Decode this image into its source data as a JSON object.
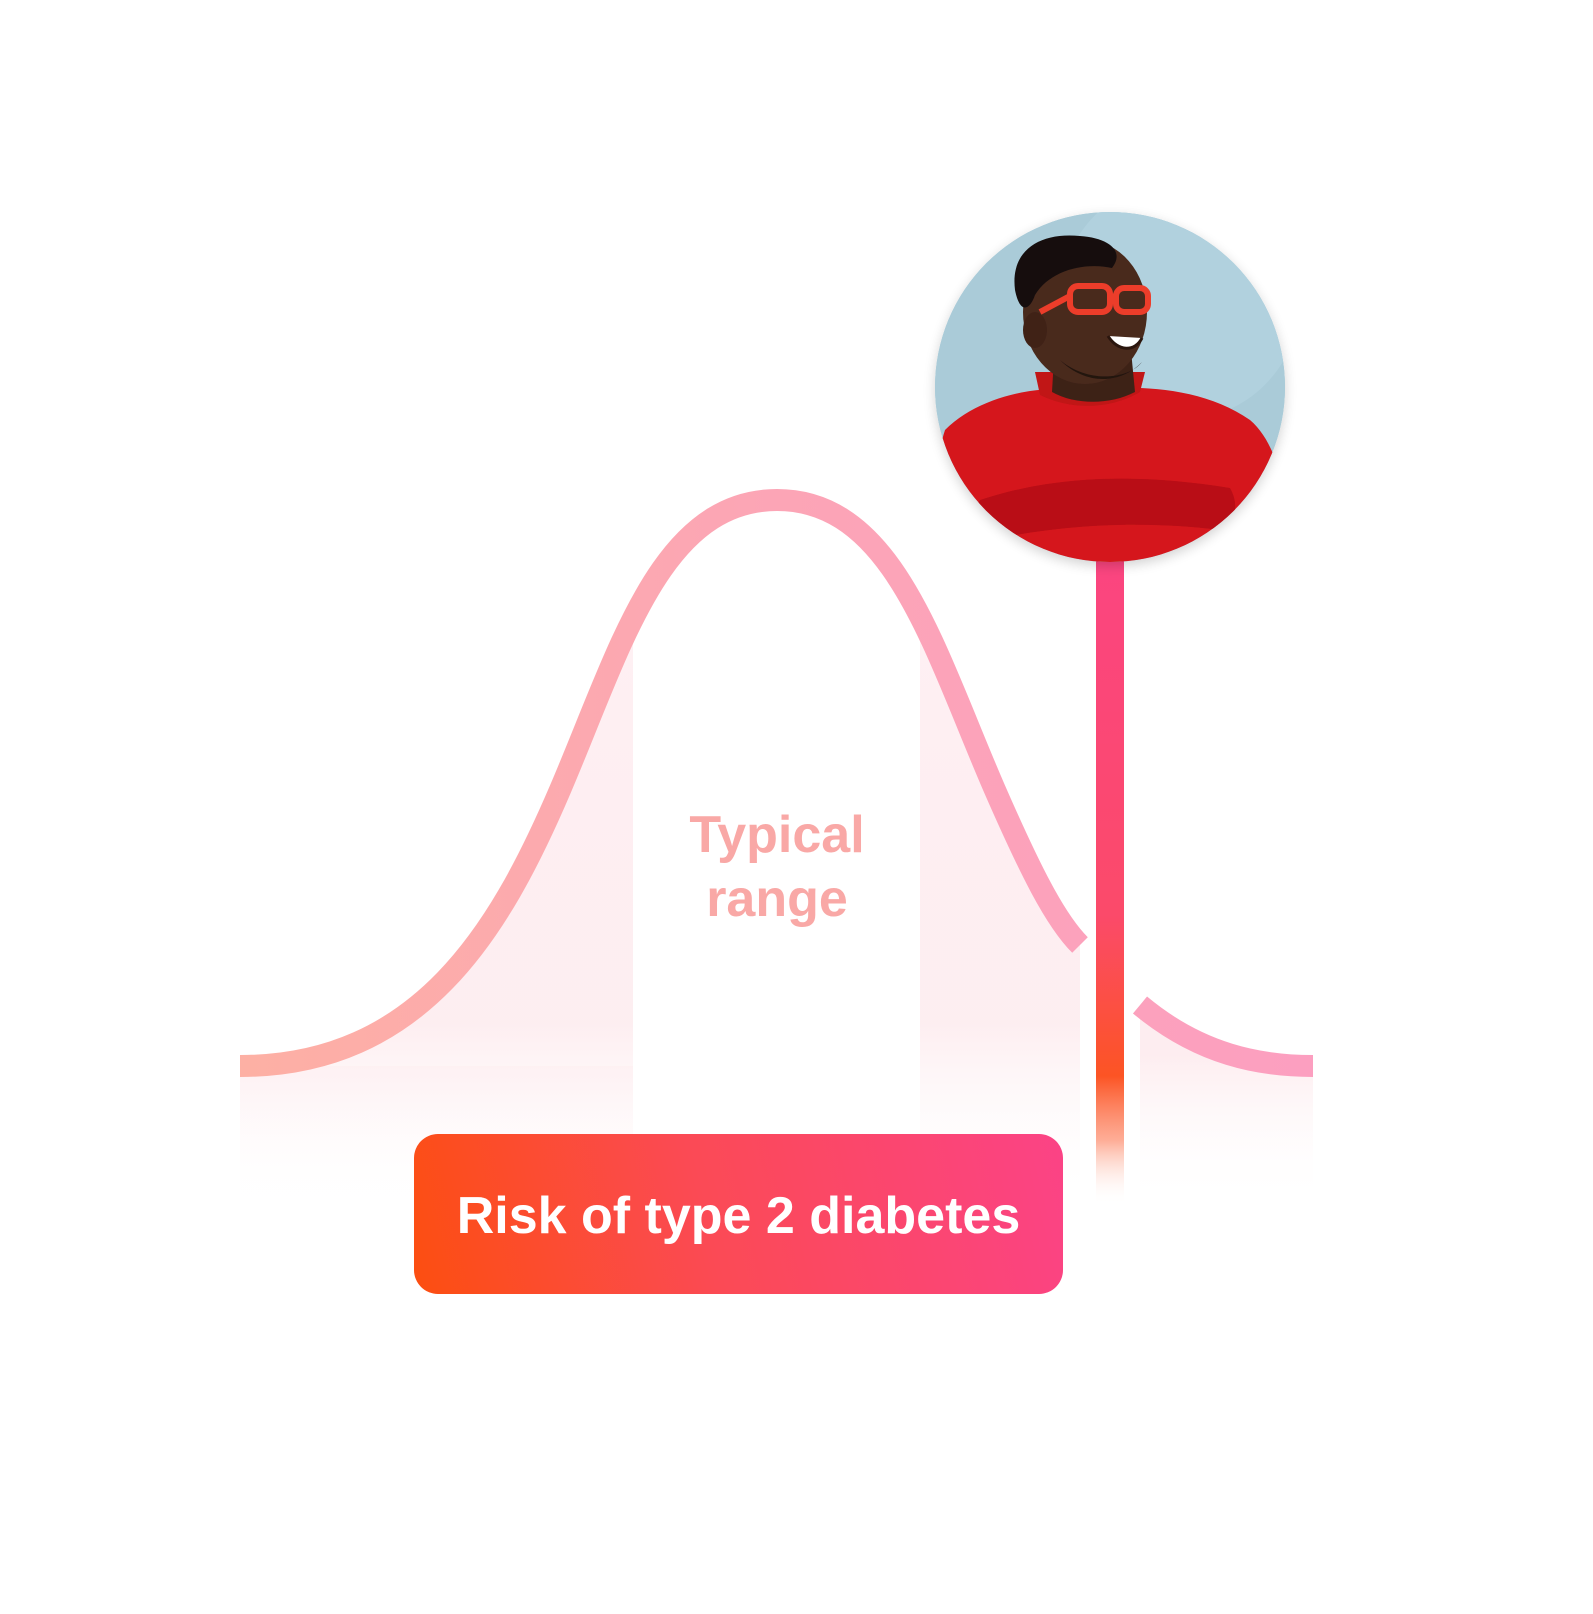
{
  "typical_range": {
    "line1": "Typical",
    "line2": "range"
  },
  "badge": {
    "label": "Risk of type 2 diabetes"
  },
  "avatar": {
    "icon": "person-portrait-icon",
    "description_visible": false
  },
  "colors": {
    "curve_left": "#fdb0a4",
    "curve_right": "#fc9fc0",
    "range_text": "#f9a8a6",
    "marker_top": "#fb4580",
    "marker_mid": "#fc4e24",
    "badge_start": "#fc4e10",
    "badge_end": "#fb4386",
    "avatar_bg": "#a9ccd9",
    "sweater": "#d5161c",
    "glasses": "#ec3c2a",
    "skin": "#4a2a1e"
  }
}
